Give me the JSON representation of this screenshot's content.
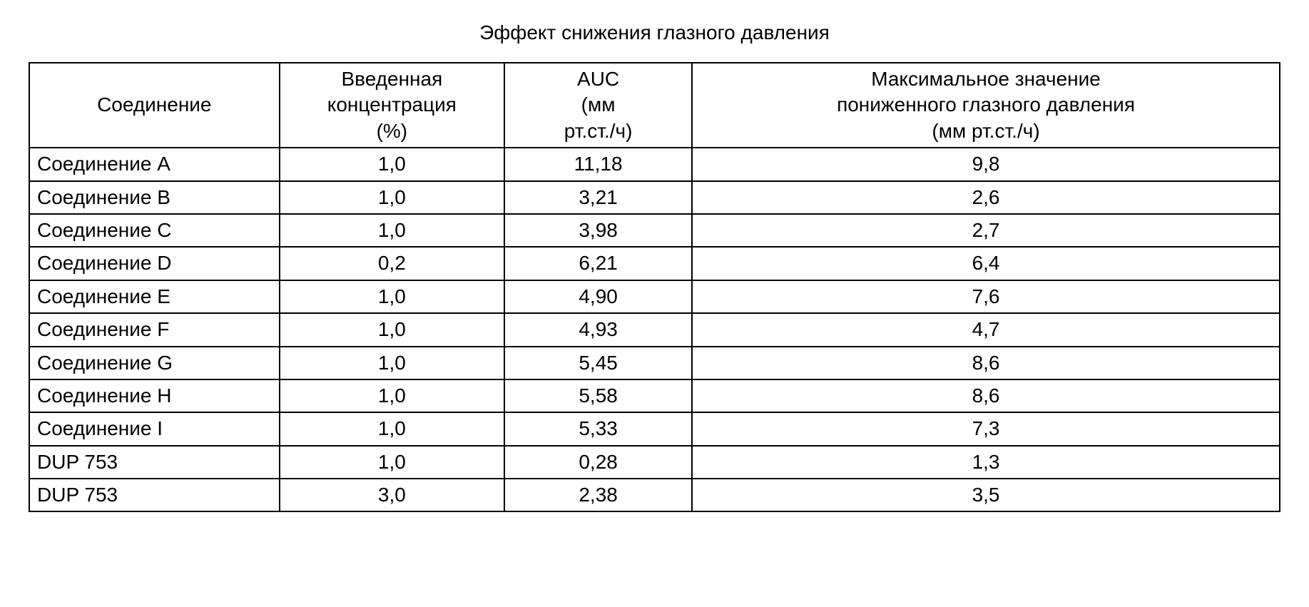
{
  "table": {
    "title": "Эффект снижения глазного давления",
    "title_fontsize": 28,
    "font_family": "Arial",
    "cell_fontsize": 28,
    "border_color": "#000000",
    "border_width": 2,
    "background_color": "#ffffff",
    "text_color": "#000000",
    "columns": [
      {
        "header": "Соединение",
        "align_header": "center",
        "align_body": "left",
        "width_pct": 20
      },
      {
        "header": "Введенная концентрация (%)",
        "align_header": "center",
        "align_body": "center",
        "width_pct": 18
      },
      {
        "header": "AUC (мм рт.ст./ч)",
        "align_header": "center",
        "align_body": "center",
        "width_pct": 15
      },
      {
        "header": "Максимальное значение пониженного глазного давления (мм рт.ст./ч)",
        "align_header": "center",
        "align_body": "center",
        "width_pct": 47
      }
    ],
    "header_lines": {
      "col0": [
        "Соединение"
      ],
      "col1": [
        "Введенная",
        "концентрация",
        "(%)"
      ],
      "col2": [
        "AUC",
        "(мм",
        "рт.ст./ч)"
      ],
      "col3": [
        "Максимальное значение",
        "пониженного глазного давления",
        "(мм рт.ст./ч)"
      ]
    },
    "rows": [
      {
        "compound": "Соединение A",
        "concentration": "1,0",
        "auc": "11,18",
        "max": "9,8"
      },
      {
        "compound": "Соединение B",
        "concentration": "1,0",
        "auc": "3,21",
        "max": "2,6"
      },
      {
        "compound": "Соединение C",
        "concentration": "1,0",
        "auc": "3,98",
        "max": "2,7"
      },
      {
        "compound": "Соединение D",
        "concentration": "0,2",
        "auc": "6,21",
        "max": "6,4"
      },
      {
        "compound": "Соединение E",
        "concentration": "1,0",
        "auc": "4,90",
        "max": "7,6"
      },
      {
        "compound": "Соединение F",
        "concentration": "1,0",
        "auc": "4,93",
        "max": "4,7"
      },
      {
        "compound": "Соединение G",
        "concentration": "1,0",
        "auc": "5,45",
        "max": "8,6"
      },
      {
        "compound": "Соединение H",
        "concentration": "1,0",
        "auc": "5,58",
        "max": "8,6"
      },
      {
        "compound": "Соединение I",
        "concentration": "1,0",
        "auc": "5,33",
        "max": "7,3"
      },
      {
        "compound": "DUP 753",
        "concentration": "1,0",
        "auc": "0,28",
        "max": "1,3"
      },
      {
        "compound": "DUP 753",
        "concentration": "3,0",
        "auc": "2,38",
        "max": "3,5"
      }
    ]
  }
}
